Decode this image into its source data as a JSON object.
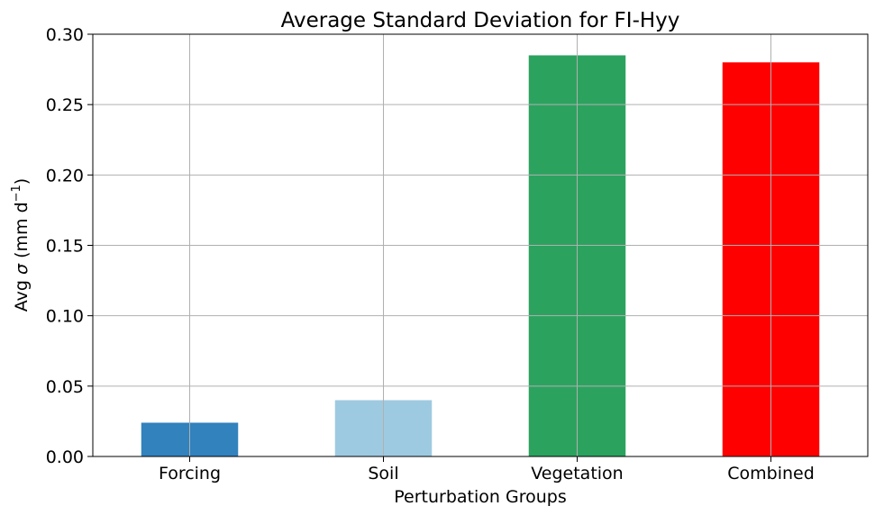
{
  "chart_data": {
    "type": "bar",
    "title": "Average Standard Deviation for FI-Hyy",
    "xlabel": "Perturbation Groups",
    "ylabel_prefix": "Avg ",
    "ylabel_symbol": "σ",
    "ylabel_unit": " (mm d",
    "ylabel_exponent": "−1",
    "ylabel_suffix": ")",
    "categories": [
      "Forcing",
      "Soil",
      "Vegetation",
      "Combined"
    ],
    "values": [
      0.024,
      0.04,
      0.285,
      0.28
    ],
    "colors": [
      "#3182bd",
      "#9ecae1",
      "#2ca25f",
      "#ff0000"
    ],
    "ylim": [
      0,
      0.3
    ],
    "yticks": [
      "0.00",
      "0.05",
      "0.10",
      "0.15",
      "0.20",
      "0.25",
      "0.30"
    ],
    "grid": true,
    "legend": "none"
  }
}
